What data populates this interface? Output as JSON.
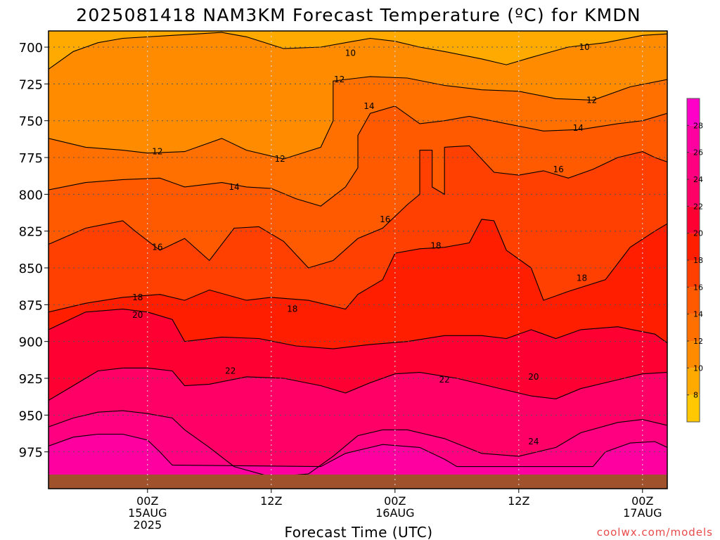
{
  "chart_data": {
    "type": "heatmap",
    "title": "2025081418 NAM3KM Forecast Temperature (ºC) for KMDN",
    "xlabel": "Forecast Time (UTC)",
    "ylabel": "",
    "y_ticks": [
      "700",
      "725",
      "750",
      "775",
      "800",
      "825",
      "850",
      "875",
      "900",
      "925",
      "950",
      "975"
    ],
    "y_values": [
      700,
      725,
      750,
      775,
      800,
      825,
      850,
      875,
      900,
      925,
      950,
      975
    ],
    "ylim": [
      689,
      1000
    ],
    "y_inverted": true,
    "xlim_hours": [
      -8,
      42
    ],
    "x_ticks": [
      {
        "hour": 0,
        "lines": [
          "00Z",
          "15AUG",
          "2025"
        ]
      },
      {
        "hour": 10,
        "lines": [
          "12Z",
          "",
          ""
        ]
      },
      {
        "hour": 20,
        "lines": [
          "00Z",
          "16AUG",
          ""
        ]
      },
      {
        "hour": 30,
        "lines": [
          "12Z",
          "",
          ""
        ]
      },
      {
        "hour": 40,
        "lines": [
          "00Z",
          "17AUG",
          ""
        ]
      }
    ],
    "grid": true,
    "colorbar": {
      "ticks": [
        "8",
        "10",
        "12",
        "14",
        "16",
        "18",
        "20",
        "22",
        "24",
        "26",
        "28"
      ],
      "bands": [
        {
          "min": 6,
          "color": "#ffc800"
        },
        {
          "min": 8,
          "color": "#ffaa00"
        },
        {
          "min": 10,
          "color": "#ff8c00"
        },
        {
          "min": 12,
          "color": "#ff7000"
        },
        {
          "min": 14,
          "color": "#ff5a00"
        },
        {
          "min": 16,
          "color": "#ff4000"
        },
        {
          "min": 18,
          "color": "#ff1e00"
        },
        {
          "min": 20,
          "color": "#ff0032"
        },
        {
          "min": 22,
          "color": "#ff0066"
        },
        {
          "min": 24,
          "color": "#ff0080"
        },
        {
          "min": 26,
          "color": "#ff00a0"
        },
        {
          "min": 28,
          "color": "#ff00c8"
        }
      ],
      "range": [
        6,
        30
      ]
    },
    "series": [
      {
        "level": 10,
        "points": [
          [
            -8,
            715
          ],
          [
            -6,
            703
          ],
          [
            -4,
            697
          ],
          [
            -2,
            694
          ],
          [
            2,
            692
          ],
          [
            6,
            690
          ],
          [
            8,
            693
          ],
          [
            11,
            701
          ],
          [
            14,
            700
          ],
          [
            16,
            697
          ],
          [
            18,
            694
          ],
          [
            20,
            696
          ],
          [
            22,
            700
          ],
          [
            24,
            703
          ],
          [
            27,
            708
          ],
          [
            29,
            712
          ],
          [
            31,
            707
          ],
          [
            34,
            700
          ],
          [
            37,
            697
          ],
          [
            40,
            692
          ],
          [
            42,
            691
          ]
        ]
      },
      {
        "level": 12,
        "points": [
          [
            -8,
            762
          ],
          [
            -5,
            768
          ],
          [
            -2,
            770
          ],
          [
            0,
            772
          ],
          [
            3,
            771
          ],
          [
            6,
            762
          ],
          [
            8,
            770
          ],
          [
            11,
            776
          ],
          [
            14,
            768
          ],
          [
            15,
            750
          ],
          [
            15,
            723
          ],
          [
            18,
            720
          ],
          [
            21,
            721
          ],
          [
            24,
            726
          ],
          [
            27,
            729
          ],
          [
            30,
            730
          ],
          [
            33,
            735
          ],
          [
            36,
            736
          ],
          [
            39,
            727
          ],
          [
            42,
            722
          ]
        ]
      },
      {
        "level": 14,
        "points": [
          [
            -8,
            797
          ],
          [
            -5,
            792
          ],
          [
            -2,
            790
          ],
          [
            1,
            789
          ],
          [
            3,
            795
          ],
          [
            6,
            792
          ],
          [
            8,
            795
          ],
          [
            10,
            796
          ],
          [
            12,
            803
          ],
          [
            14,
            808
          ],
          [
            16,
            795
          ],
          [
            17,
            782
          ],
          [
            17,
            760
          ],
          [
            18,
            745
          ],
          [
            20,
            740
          ],
          [
            22,
            752
          ],
          [
            24,
            750
          ],
          [
            26,
            747
          ],
          [
            29,
            752
          ],
          [
            32,
            757
          ],
          [
            35,
            756
          ],
          [
            38,
            752
          ],
          [
            40,
            750
          ],
          [
            42,
            745
          ]
        ]
      },
      {
        "level": 16,
        "points": [
          [
            -8,
            834
          ],
          [
            -5,
            823
          ],
          [
            -2,
            818
          ],
          [
            -1,
            825
          ],
          [
            1,
            838
          ],
          [
            3,
            830
          ],
          [
            5,
            845
          ],
          [
            7,
            823
          ],
          [
            9,
            822
          ],
          [
            11,
            832
          ],
          [
            13,
            850
          ],
          [
            15,
            845
          ],
          [
            17,
            830
          ],
          [
            19,
            823
          ],
          [
            21,
            807
          ],
          [
            22,
            800
          ],
          [
            22,
            770
          ],
          [
            23,
            770
          ],
          [
            23,
            795
          ],
          [
            24,
            800
          ],
          [
            24,
            788
          ],
          [
            24,
            768
          ],
          [
            26,
            767
          ],
          [
            28,
            785
          ],
          [
            30,
            787
          ],
          [
            32,
            784
          ],
          [
            34,
            789
          ],
          [
            36,
            783
          ],
          [
            38,
            775
          ],
          [
            40,
            771
          ],
          [
            41,
            775
          ],
          [
            42,
            778
          ]
        ]
      },
      {
        "level": 18,
        "points": [
          [
            -8,
            880
          ],
          [
            -5,
            874
          ],
          [
            -2,
            870
          ],
          [
            1,
            868
          ],
          [
            3,
            872
          ],
          [
            5,
            865
          ],
          [
            8,
            872
          ],
          [
            10,
            870
          ],
          [
            13,
            872
          ],
          [
            16,
            878
          ],
          [
            17,
            868
          ],
          [
            19,
            858
          ],
          [
            20,
            840
          ],
          [
            22,
            837
          ],
          [
            24,
            836
          ],
          [
            26,
            833
          ],
          [
            27,
            817
          ],
          [
            28,
            818
          ],
          [
            29,
            838
          ],
          [
            31,
            850
          ],
          [
            32,
            872
          ],
          [
            34,
            866
          ],
          [
            37,
            858
          ],
          [
            39,
            836
          ],
          [
            41,
            825
          ],
          [
            42,
            820
          ]
        ]
      },
      {
        "level": 20,
        "points": [
          [
            -8,
            892
          ],
          [
            -5,
            880
          ],
          [
            -2,
            878
          ],
          [
            0,
            880
          ],
          [
            2,
            885
          ],
          [
            3,
            900
          ],
          [
            6,
            897
          ],
          [
            9,
            898
          ],
          [
            12,
            903
          ],
          [
            15,
            905
          ],
          [
            18,
            902
          ],
          [
            21,
            900
          ],
          [
            24,
            896
          ],
          [
            27,
            896
          ],
          [
            29,
            898
          ],
          [
            31,
            892
          ],
          [
            33,
            898
          ],
          [
            35,
            892
          ],
          [
            38,
            890
          ],
          [
            41,
            895
          ],
          [
            42,
            901
          ]
        ]
      },
      {
        "level": 22,
        "points": [
          [
            -8,
            940
          ],
          [
            -6,
            930
          ],
          [
            -4,
            920
          ],
          [
            -2,
            918
          ],
          [
            0,
            918
          ],
          [
            2,
            920
          ],
          [
            3,
            930
          ],
          [
            5,
            929
          ],
          [
            8,
            924
          ],
          [
            11,
            925
          ],
          [
            14,
            930
          ],
          [
            16,
            935
          ],
          [
            18,
            928
          ],
          [
            20,
            922
          ],
          [
            22,
            921
          ],
          [
            25,
            925
          ],
          [
            28,
            931
          ],
          [
            31,
            937
          ],
          [
            33,
            939
          ],
          [
            35,
            932
          ],
          [
            38,
            926
          ],
          [
            40,
            922
          ],
          [
            42,
            921
          ]
        ]
      },
      {
        "level": 24,
        "points": [
          [
            -8,
            958
          ],
          [
            -6,
            952
          ],
          [
            -4,
            948
          ],
          [
            -2,
            947
          ],
          [
            0,
            949
          ],
          [
            2,
            952
          ],
          [
            3,
            960
          ],
          [
            5,
            972
          ],
          [
            7,
            985
          ],
          [
            10,
            992
          ],
          [
            13,
            990
          ],
          [
            15,
            978
          ],
          [
            17,
            964
          ],
          [
            19,
            960
          ],
          [
            21,
            960
          ],
          [
            24,
            966
          ],
          [
            27,
            976
          ],
          [
            30,
            978
          ],
          [
            33,
            972
          ],
          [
            35,
            962
          ],
          [
            38,
            955
          ],
          [
            40,
            953
          ],
          [
            42,
            957
          ]
        ]
      },
      {
        "level": 26,
        "points": [
          [
            -8,
            971
          ],
          [
            -6,
            965
          ],
          [
            -4,
            963
          ],
          [
            -2,
            963
          ],
          [
            0,
            967
          ],
          [
            1,
            975
          ],
          [
            2,
            984
          ],
          [
            14,
            985
          ],
          [
            16,
            976
          ],
          [
            19,
            970
          ],
          [
            22,
            972
          ],
          [
            24,
            980
          ],
          [
            25,
            985
          ],
          [
            36,
            985
          ],
          [
            37,
            975
          ],
          [
            39,
            969
          ],
          [
            41,
            968
          ],
          [
            42,
            972
          ]
        ]
      }
    ],
    "contour_labels": [
      {
        "text": "10",
        "hour": 16.4,
        "hpa": 704
      },
      {
        "text": "10",
        "hour": 35.3,
        "hpa": 700
      },
      {
        "text": "12",
        "hour": 0.8,
        "hpa": 771
      },
      {
        "text": "12",
        "hour": 10.7,
        "hpa": 776
      },
      {
        "text": "12",
        "hour": 15.5,
        "hpa": 722
      },
      {
        "text": "12",
        "hour": 35.9,
        "hpa": 736
      },
      {
        "text": "14",
        "hour": 7.0,
        "hpa": 795
      },
      {
        "text": "14",
        "hour": 17.9,
        "hpa": 740
      },
      {
        "text": "14",
        "hour": 34.8,
        "hpa": 755
      },
      {
        "text": "16",
        "hour": 0.8,
        "hpa": 836
      },
      {
        "text": "16",
        "hour": 19.2,
        "hpa": 817
      },
      {
        "text": "16",
        "hour": 33.2,
        "hpa": 783
      },
      {
        "text": "18",
        "hour": -0.8,
        "hpa": 870
      },
      {
        "text": "18",
        "hour": 11.7,
        "hpa": 878
      },
      {
        "text": "18",
        "hour": 23.3,
        "hpa": 835
      },
      {
        "text": "18",
        "hour": 35.1,
        "hpa": 857
      },
      {
        "text": "20",
        "hour": -0.8,
        "hpa": 882
      },
      {
        "text": "20",
        "hour": 31.2,
        "hpa": 924
      },
      {
        "text": "22",
        "hour": 6.7,
        "hpa": 920
      },
      {
        "text": "22",
        "hour": 24.0,
        "hpa": 926
      },
      {
        "text": "24",
        "hour": 31.2,
        "hpa": 968
      }
    ],
    "ground_color": "#a0522d"
  },
  "credit": "coolwx.com/models",
  "colors": {
    "credit": "#e84a4a",
    "contour": "#000000",
    "grid": "#555555"
  }
}
